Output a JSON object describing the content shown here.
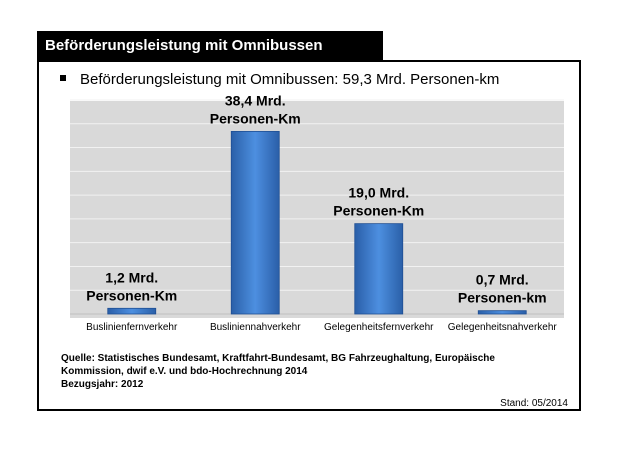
{
  "header": {
    "title": "Beförderungsleistung mit Omnibussen"
  },
  "bullet": {
    "text": "Beförderungsleistung mit Omnibussen: 59,3 Mrd. Personen-km"
  },
  "chart_data": {
    "type": "bar",
    "categories": [
      "Buslinienfernverkehr",
      "Busliniennahverkehr",
      "Gelegenheitsfernverkehr",
      "Gelegenheitsnahverkehr"
    ],
    "values": [
      1.2,
      38.4,
      19.0,
      0.7
    ],
    "data_labels": [
      [
        "1,2 Mrd.",
        "Personen-Km"
      ],
      [
        "38,4 Mrd.",
        "Personen-Km"
      ],
      [
        "19,0 Mrd.",
        "Personen-Km"
      ],
      [
        "0,7 Mrd.",
        "Personen-km"
      ]
    ],
    "ylim": [
      0,
      45
    ],
    "grid": true,
    "bar_color": "#3c7ed6",
    "background_color": "#d9d9d9"
  },
  "source": {
    "lines": [
      "Quelle: Statistisches Bundesamt, Kraftfahrt-Bundesamt, BG Fahrzeughaltung, Europäische",
      "Kommission, dwif e.V. und bdo-Hochrechnung 2014",
      "Bezugsjahr: 2012"
    ]
  },
  "stand": "Stand: 05/2014"
}
